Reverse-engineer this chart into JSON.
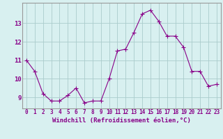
{
  "x": [
    0,
    1,
    2,
    3,
    4,
    5,
    6,
    7,
    8,
    9,
    10,
    11,
    12,
    13,
    14,
    15,
    16,
    17,
    18,
    19,
    20,
    21,
    22,
    23
  ],
  "y": [
    11.0,
    10.4,
    9.2,
    8.8,
    8.8,
    9.1,
    9.5,
    8.7,
    8.8,
    8.8,
    10.0,
    11.5,
    11.6,
    12.5,
    13.5,
    13.7,
    13.1,
    12.3,
    12.3,
    11.7,
    10.4,
    10.4,
    9.6,
    9.7
  ],
  "line_color": "#880088",
  "marker": "+",
  "marker_size": 4,
  "bg_color": "#d8f0f0",
  "grid_color": "#aacccc",
  "xlabel": "Windchill (Refroidissement éolien,°C)",
  "xlabel_color": "#880088",
  "tick_color": "#880088",
  "ylim": [
    8.4,
    14.1
  ],
  "xlim": [
    -0.5,
    23.5
  ],
  "yticks": [
    9,
    10,
    11,
    12,
    13
  ],
  "xticks": [
    0,
    1,
    2,
    3,
    4,
    5,
    6,
    7,
    8,
    9,
    10,
    11,
    12,
    13,
    14,
    15,
    16,
    17,
    18,
    19,
    20,
    21,
    22,
    23
  ],
  "spine_color": "#999999",
  "tick_fontsize": 5.5,
  "ytick_fontsize": 6.5,
  "xlabel_fontsize": 6.5,
  "linewidth": 0.8,
  "marker_linewidth": 0.8
}
